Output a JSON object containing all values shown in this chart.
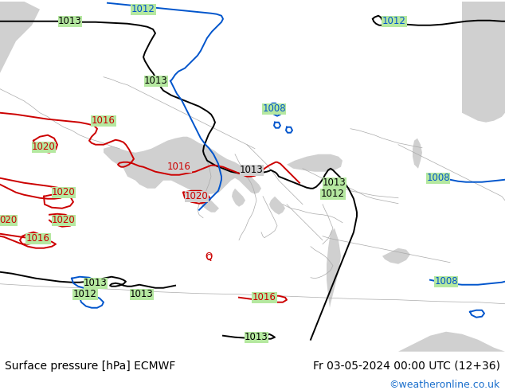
{
  "bottom_left_label": "Surface pressure [hPa] ECMWF",
  "bottom_right_label": "Fr 03-05-2024 00:00 UTC (12+36)",
  "copyright_label": "©weatheronline.co.uk",
  "label_fontsize": 10,
  "copyright_color": "#1a6fcc",
  "figsize": [
    6.34,
    4.9
  ],
  "dpi": 100,
  "bg_land_color": "#b5e8a0",
  "bg_sea_color": "#d0d0d0",
  "coast_color": "#aaaaaa",
  "black_color": "#000000",
  "red_color": "#cc0000",
  "blue_color": "#0055cc",
  "line_width": 1.4,
  "label_bg": "#b5e8a0",
  "sea_label_bg": "#d0d0d0"
}
